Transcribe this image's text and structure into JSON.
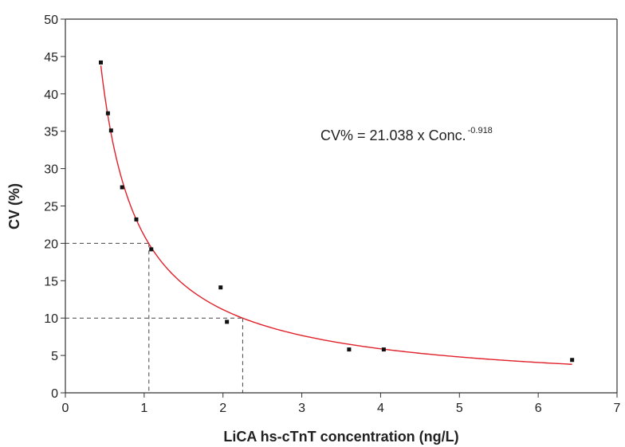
{
  "chart_data": {
    "type": "scatter",
    "xlabel": "LiCA hs-cTnT concentration (ng/L)",
    "ylabel": "CV (%)",
    "xlim": [
      0,
      7
    ],
    "ylim": [
      0,
      50
    ],
    "x_ticks": [
      0,
      1,
      2,
      3,
      4,
      5,
      6,
      7
    ],
    "y_ticks": [
      0,
      5,
      10,
      15,
      20,
      25,
      30,
      35,
      40,
      45,
      50
    ],
    "grid": false,
    "points": [
      {
        "x": 0.45,
        "y": 44.2
      },
      {
        "x": 0.54,
        "y": 37.4
      },
      {
        "x": 0.58,
        "y": 35.1
      },
      {
        "x": 0.72,
        "y": 27.5
      },
      {
        "x": 0.9,
        "y": 23.2
      },
      {
        "x": 1.09,
        "y": 19.2
      },
      {
        "x": 1.97,
        "y": 14.1
      },
      {
        "x": 2.05,
        "y": 9.5
      },
      {
        "x": 3.6,
        "y": 5.8
      },
      {
        "x": 4.04,
        "y": 5.8
      },
      {
        "x": 6.43,
        "y": 4.4
      }
    ],
    "fit": {
      "a": 21.038,
      "b": -0.918,
      "x_range": [
        0.45,
        6.43
      ],
      "color": "#e0202a"
    },
    "annotation": {
      "text": "CV% = 21.038 x Conc.",
      "superscript": "-0.918"
    },
    "reference_lines": [
      {
        "cv": 20,
        "conc": 1.06
      },
      {
        "cv": 10,
        "conc": 2.25
      }
    ],
    "point_color": "#111111"
  }
}
